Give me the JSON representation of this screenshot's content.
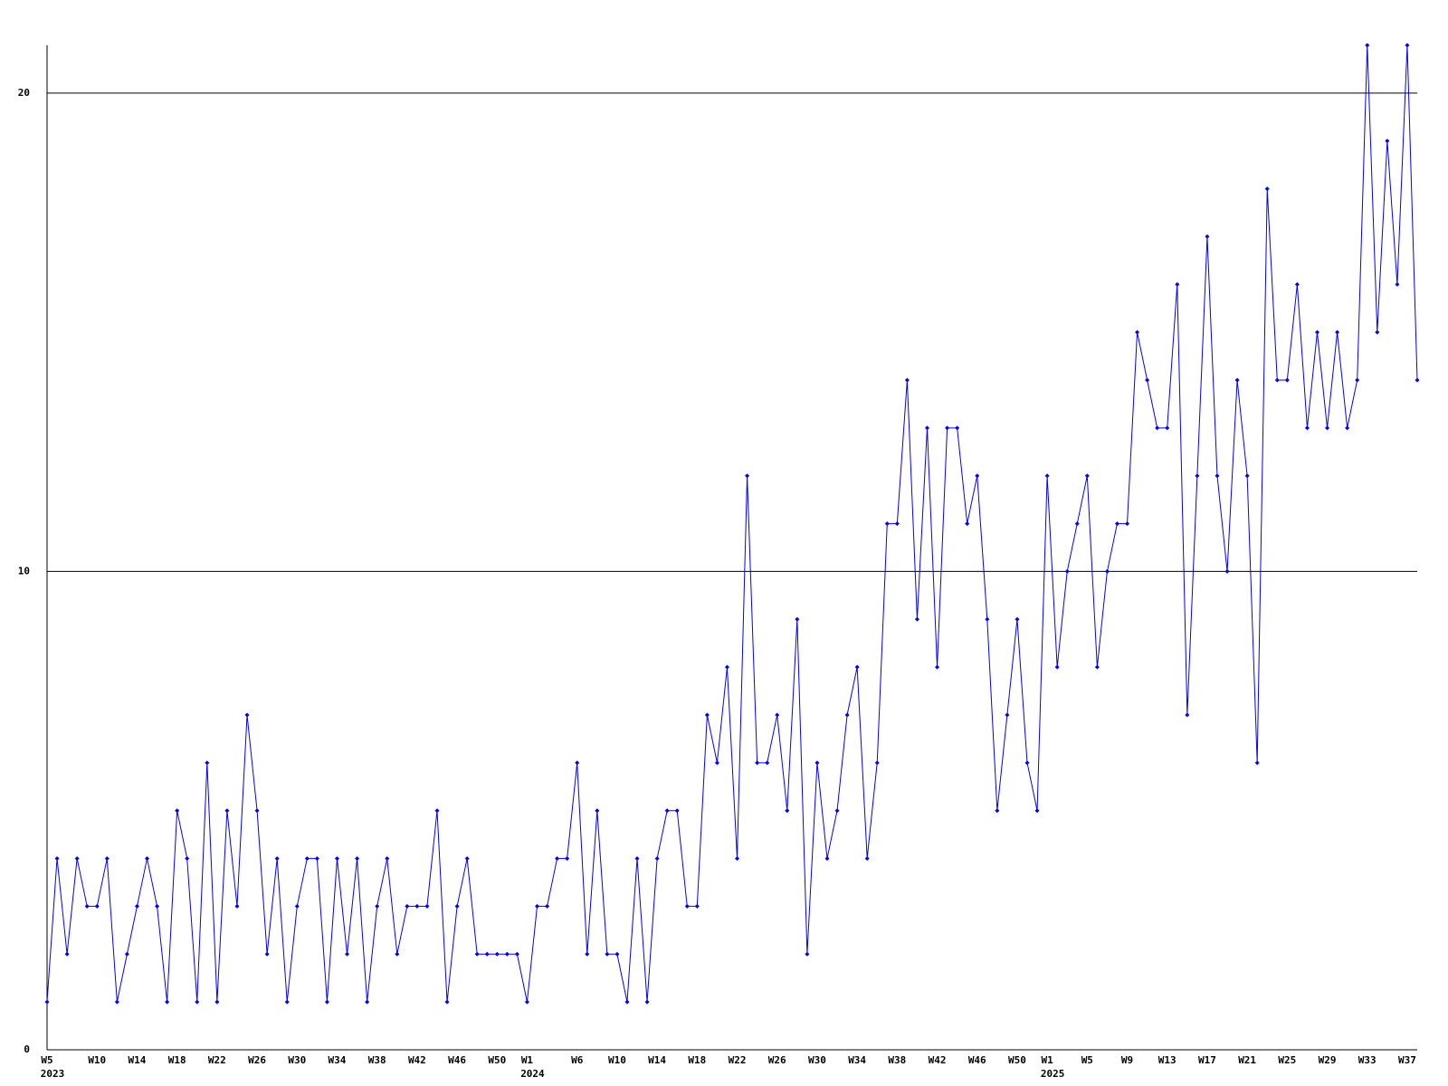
{
  "chart_data": {
    "type": "line",
    "color": "#0000ff",
    "grid": true,
    "ylim": [
      0,
      21
    ],
    "yticks": [
      0,
      10,
      20
    ],
    "categories": [
      "W5",
      null,
      null,
      null,
      null,
      "W10",
      null,
      null,
      null,
      "W14",
      null,
      null,
      null,
      "W18",
      null,
      null,
      null,
      "W22",
      null,
      null,
      null,
      "W26",
      null,
      null,
      null,
      "W30",
      null,
      null,
      null,
      "W34",
      null,
      null,
      null,
      "W38",
      null,
      null,
      null,
      "W42",
      null,
      null,
      null,
      "W46",
      null,
      null,
      null,
      "W50",
      null,
      null,
      "W1",
      null,
      null,
      null,
      null,
      "W6",
      null,
      null,
      null,
      "W10",
      null,
      null,
      null,
      "W14",
      null,
      null,
      null,
      "W18",
      null,
      null,
      null,
      "W22",
      null,
      null,
      null,
      "W26",
      null,
      null,
      null,
      "W30",
      null,
      null,
      null,
      "W34",
      null,
      null,
      null,
      "W38",
      null,
      null,
      null,
      "W42",
      null,
      null,
      null,
      "W46",
      null,
      null,
      null,
      "W50",
      null,
      null,
      "W1",
      null,
      null,
      null,
      "W5",
      null,
      null,
      null,
      "W9",
      null,
      null,
      null,
      "W13",
      null,
      null,
      null,
      "W17",
      null,
      null,
      null,
      "W21",
      null,
      null,
      null,
      "W25",
      null,
      null,
      null,
      "W29",
      null,
      null,
      null,
      "W33",
      null,
      null,
      null,
      "W37",
      null
    ],
    "years": [
      "2023",
      null,
      null,
      null,
      null,
      null,
      null,
      null,
      null,
      null,
      null,
      null,
      null,
      null,
      null,
      null,
      null,
      null,
      null,
      null,
      null,
      null,
      null,
      null,
      null,
      null,
      null,
      null,
      null,
      null,
      null,
      null,
      null,
      null,
      null,
      null,
      null,
      null,
      null,
      null,
      null,
      null,
      null,
      null,
      null,
      null,
      null,
      null,
      "2024",
      null,
      null,
      null,
      null,
      null,
      null,
      null,
      null,
      null,
      null,
      null,
      null,
      null,
      null,
      null,
      null,
      null,
      null,
      null,
      null,
      null,
      null,
      null,
      null,
      null,
      null,
      null,
      null,
      null,
      null,
      null,
      null,
      null,
      null,
      null,
      null,
      null,
      null,
      null,
      null,
      null,
      null,
      null,
      null,
      null,
      null,
      null,
      null,
      null,
      null,
      null,
      "2025",
      null,
      null,
      null,
      null,
      null,
      null,
      null,
      null,
      null,
      null,
      null,
      null,
      null,
      null,
      null,
      null,
      null,
      null,
      null,
      null,
      null,
      null,
      null,
      null,
      null,
      null,
      null,
      null,
      null,
      null,
      null,
      null,
      null,
      null,
      null,
      null,
      null
    ],
    "values": [
      1,
      4,
      2,
      4,
      3,
      3,
      4,
      1,
      2,
      3,
      4,
      3,
      1,
      5,
      4,
      1,
      6,
      1,
      5,
      3,
      7,
      5,
      2,
      4,
      1,
      3,
      4,
      4,
      1,
      4,
      2,
      4,
      1,
      3,
      4,
      2,
      3,
      3,
      3,
      5,
      1,
      3,
      4,
      2,
      2,
      2,
      2,
      2,
      1,
      3,
      3,
      4,
      4,
      6,
      2,
      5,
      2,
      2,
      1,
      4,
      1,
      4,
      5,
      5,
      3,
      3,
      7,
      6,
      8,
      4,
      12,
      6,
      6,
      7,
      5,
      9,
      2,
      6,
      4,
      5,
      7,
      8,
      4,
      6,
      11,
      11,
      14,
      9,
      13,
      8,
      13,
      13,
      11,
      12,
      9,
      5,
      7,
      9,
      6,
      5,
      12,
      8,
      10,
      11,
      12,
      8,
      10,
      11,
      11,
      15,
      14,
      13,
      13,
      16,
      7,
      12,
      17,
      12,
      10,
      14,
      12,
      6,
      18,
      14,
      14,
      16,
      13,
      15,
      13,
      15,
      13,
      14,
      21,
      15,
      19,
      16,
      21,
      14
    ]
  }
}
